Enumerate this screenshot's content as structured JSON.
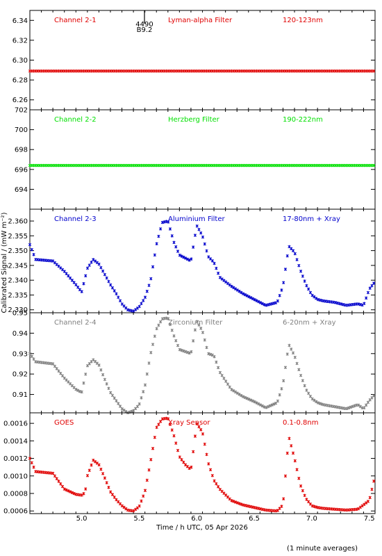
{
  "figure": {
    "xlabel": "Time / h UTC, 05 Apr 2026",
    "ylabel": "Calibrated Signal / (mW m⁻²)",
    "footnote": "(1 minute averages)",
    "x_ticks": [
      "5.0",
      "5.5",
      "6.0",
      "6.5",
      "7.0",
      "7.5"
    ],
    "flare_marker": {
      "label_top": "4490",
      "label_bottom": "B9.2"
    }
  },
  "chart_data": [
    {
      "type": "scatter",
      "channel": "Channel 2-1",
      "filter": "Lyman-alpha Filter",
      "band": "120-123nm",
      "color": "#e00000",
      "xlim": [
        4.55,
        7.55
      ],
      "ylim": [
        6.25,
        6.35
      ],
      "y_ticks": [
        6.26,
        6.28,
        6.3,
        6.32,
        6.34
      ],
      "y_tick_labels": [
        "6.26",
        "6.28",
        "6.30",
        "6.32",
        "6.34"
      ],
      "x_start": 4.55,
      "x_step": 0.0167,
      "x_anchor": [
        4.55,
        7.55
      ],
      "y_anchor": [
        6.289,
        6.289
      ]
    },
    {
      "type": "scatter",
      "channel": "Channel 2-2",
      "filter": "Herzberg Filter",
      "band": "190-222nm",
      "color": "#00e000",
      "xlim": [
        4.55,
        7.55
      ],
      "ylim": [
        692,
        702
      ],
      "y_ticks": [
        694,
        696,
        698,
        700,
        702
      ],
      "y_tick_labels": [
        "694",
        "696",
        "698",
        "700",
        "702"
      ],
      "x_start": 4.55,
      "x_step": 0.0167,
      "x_anchor": [
        4.55,
        7.55
      ],
      "y_anchor": [
        696.4,
        696.4
      ]
    },
    {
      "type": "scatter",
      "channel": "Channel 2-3",
      "filter": "Aluminium Filter",
      "band": "17-80nm + Xray",
      "color": "#0000cc",
      "xlim": [
        4.55,
        7.55
      ],
      "ylim": [
        2.329,
        2.364
      ],
      "y_ticks": [
        2.33,
        2.335,
        2.34,
        2.345,
        2.35,
        2.355,
        2.36
      ],
      "y_tick_labels": [
        "2.330",
        "2.335",
        "2.340",
        "2.345",
        "2.350",
        "2.355",
        "2.360"
      ],
      "x_start": 4.55,
      "x_step": 0.0167,
      "x_anchor": [
        4.55,
        4.6,
        4.75,
        4.85,
        4.95,
        5.0,
        5.05,
        5.1,
        5.15,
        5.2,
        5.25,
        5.3,
        5.35,
        5.4,
        5.45,
        5.5,
        5.55,
        5.6,
        5.65,
        5.7,
        5.75,
        5.8,
        5.85,
        5.9,
        5.95,
        6.0,
        6.05,
        6.1,
        6.15,
        6.2,
        6.3,
        6.4,
        6.5,
        6.6,
        6.7,
        6.75,
        6.8,
        6.85,
        6.9,
        6.95,
        7.0,
        7.05,
        7.1,
        7.2,
        7.3,
        7.4,
        7.45,
        7.5,
        7.55
      ],
      "y_anchor": [
        2.352,
        2.347,
        2.3465,
        2.343,
        2.3385,
        2.336,
        2.344,
        2.347,
        2.3455,
        2.342,
        2.3385,
        2.3355,
        2.332,
        2.33,
        2.3295,
        2.331,
        2.334,
        2.34,
        2.352,
        2.3595,
        2.36,
        2.353,
        2.3485,
        2.3475,
        2.3465,
        2.3585,
        2.355,
        2.348,
        2.346,
        2.341,
        2.338,
        2.3355,
        2.3335,
        2.3315,
        2.3325,
        2.338,
        2.3515,
        2.3495,
        2.3435,
        2.3385,
        2.335,
        2.3335,
        2.333,
        2.3325,
        2.3315,
        2.332,
        2.3315,
        2.337,
        2.3395
      ]
    },
    {
      "type": "scatter",
      "channel": "Channel 2-4",
      "filter": "Zirconium Filter",
      "band": "6-20nm + Xray",
      "color": "#808080",
      "xlim": [
        4.55,
        7.55
      ],
      "ylim": [
        0.901,
        0.95
      ],
      "y_ticks": [
        0.91,
        0.92,
        0.93,
        0.94,
        0.95
      ],
      "y_tick_labels": [
        "0.91",
        "0.92",
        "0.93",
        "0.94",
        "0.95"
      ],
      "x_start": 4.55,
      "x_step": 0.0167,
      "x_anchor": [
        4.55,
        4.6,
        4.75,
        4.85,
        4.95,
        5.0,
        5.05,
        5.1,
        5.15,
        5.2,
        5.25,
        5.3,
        5.35,
        5.4,
        5.45,
        5.5,
        5.55,
        5.6,
        5.65,
        5.7,
        5.75,
        5.8,
        5.85,
        5.9,
        5.95,
        6.0,
        6.05,
        6.1,
        6.15,
        6.2,
        6.3,
        6.4,
        6.5,
        6.6,
        6.7,
        6.75,
        6.8,
        6.85,
        6.9,
        6.95,
        7.0,
        7.05,
        7.1,
        7.2,
        7.3,
        7.4,
        7.45,
        7.5,
        7.55
      ],
      "y_anchor": [
        0.93,
        0.926,
        0.925,
        0.918,
        0.9125,
        0.911,
        0.924,
        0.927,
        0.9245,
        0.9175,
        0.911,
        0.907,
        0.903,
        0.901,
        0.902,
        0.905,
        0.914,
        0.93,
        0.942,
        0.947,
        0.9475,
        0.939,
        0.932,
        0.931,
        0.93,
        0.946,
        0.941,
        0.93,
        0.929,
        0.921,
        0.9125,
        0.909,
        0.9065,
        0.9035,
        0.906,
        0.915,
        0.9345,
        0.929,
        0.92,
        0.9125,
        0.908,
        0.906,
        0.905,
        0.904,
        0.903,
        0.905,
        0.903,
        0.907,
        0.91
      ]
    },
    {
      "type": "scatter",
      "channel": "GOES",
      "filter": "Xray Sensor",
      "band": "0.1-0.8nm",
      "color": "#e00000",
      "xlim": [
        4.55,
        7.55
      ],
      "ylim": [
        0.00057,
        0.00172
      ],
      "y_ticks": [
        0.0006,
        0.0008,
        0.001,
        0.0012,
        0.0014,
        0.0016
      ],
      "y_tick_labels": [
        "0.0006",
        "0.0008",
        "0.0010",
        "0.0012",
        "0.0014",
        "0.0016"
      ],
      "x_start": 4.55,
      "x_step": 0.0167,
      "x_anchor": [
        4.55,
        4.6,
        4.75,
        4.85,
        4.95,
        5.0,
        5.03,
        5.05,
        5.1,
        5.15,
        5.2,
        5.25,
        5.3,
        5.35,
        5.4,
        5.45,
        5.5,
        5.55,
        5.6,
        5.65,
        5.7,
        5.75,
        5.8,
        5.85,
        5.9,
        5.95,
        6.0,
        6.05,
        6.1,
        6.15,
        6.2,
        6.3,
        6.4,
        6.5,
        6.6,
        6.7,
        6.75,
        6.8,
        6.85,
        6.9,
        6.95,
        7.0,
        7.05,
        7.1,
        7.2,
        7.3,
        7.4,
        7.45,
        7.5,
        7.55
      ],
      "y_anchor": [
        0.0012,
        0.00105,
        0.00103,
        0.00085,
        0.00079,
        0.00078,
        0.00081,
        0.001,
        0.00118,
        0.00113,
        0.00098,
        0.00082,
        0.00073,
        0.00066,
        0.00061,
        0.0006,
        0.00065,
        0.00082,
        0.00117,
        0.00155,
        0.00165,
        0.00166,
        0.00147,
        0.00122,
        0.00113,
        0.00107,
        0.0016,
        0.0015,
        0.00115,
        0.00095,
        0.00085,
        0.00072,
        0.00067,
        0.00064,
        0.00061,
        0.0006,
        0.00067,
        0.00145,
        0.0012,
        0.0009,
        0.00074,
        0.00066,
        0.00064,
        0.00063,
        0.00062,
        0.00061,
        0.00062,
        0.00067,
        0.00072,
        0.001
      ]
    }
  ]
}
